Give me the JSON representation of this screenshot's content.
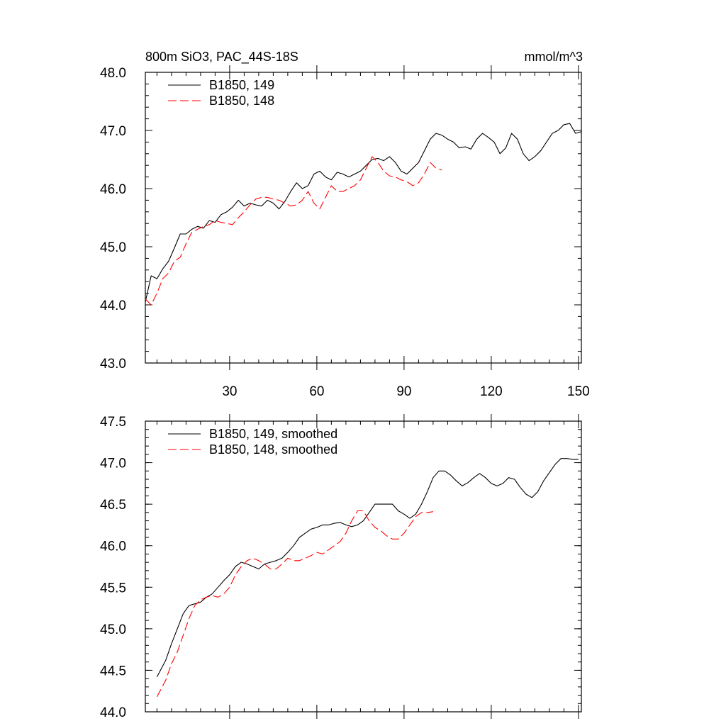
{
  "chart_data": [
    {
      "type": "line",
      "title": "800m SiO3, PAC_44S-18S",
      "units": "mmol/m^3",
      "xlim": [
        1,
        151
      ],
      "ylim": [
        43.0,
        48.0
      ],
      "xticks": [
        30,
        60,
        90,
        120,
        150
      ],
      "yticks": [
        "43.0",
        "44.0",
        "45.0",
        "46.0",
        "47.0",
        "48.0"
      ],
      "legend_position": "top-left",
      "series": [
        {
          "name": "B1850, 149",
          "color": "#000000",
          "dash": "solid",
          "x": [
            1,
            3,
            5,
            7,
            9,
            11,
            13,
            15,
            17,
            19,
            21,
            23,
            25,
            27,
            29,
            31,
            33,
            35,
            37,
            39,
            41,
            43,
            45,
            47,
            49,
            51,
            53,
            55,
            57,
            59,
            61,
            63,
            65,
            67,
            69,
            71,
            73,
            75,
            77,
            79,
            81,
            83,
            85,
            87,
            89,
            91,
            93,
            95,
            97,
            99,
            101,
            103,
            105,
            107,
            109,
            111,
            113,
            115,
            117,
            119,
            121,
            123,
            125,
            127,
            129,
            131,
            133,
            135,
            137,
            139,
            141,
            143,
            145,
            147,
            149,
            151
          ],
          "y": [
            44.05,
            44.5,
            44.45,
            44.62,
            44.75,
            44.98,
            45.22,
            45.22,
            45.3,
            45.35,
            45.32,
            45.45,
            45.42,
            45.55,
            45.6,
            45.68,
            45.8,
            45.7,
            45.75,
            45.72,
            45.7,
            45.8,
            45.75,
            45.65,
            45.78,
            45.95,
            46.1,
            46.0,
            46.05,
            46.25,
            46.3,
            46.2,
            46.15,
            46.28,
            46.25,
            46.2,
            46.25,
            46.3,
            46.4,
            46.5,
            46.52,
            46.48,
            46.55,
            46.45,
            46.3,
            46.25,
            46.35,
            46.45,
            46.65,
            46.85,
            46.95,
            46.92,
            46.85,
            46.8,
            46.7,
            46.72,
            46.68,
            46.85,
            46.95,
            46.88,
            46.8,
            46.6,
            46.7,
            46.95,
            46.85,
            46.6,
            46.48,
            46.55,
            46.65,
            46.8,
            46.95,
            47.0,
            47.1,
            47.12,
            46.95,
            46.98
          ]
        },
        {
          "name": "B1850, 148",
          "color": "#ff0000",
          "dash": "dashed",
          "x": [
            1,
            3,
            5,
            7,
            9,
            11,
            13,
            15,
            17,
            19,
            21,
            23,
            25,
            27,
            29,
            31,
            33,
            35,
            37,
            39,
            41,
            43,
            45,
            47,
            49,
            51,
            53,
            55,
            57,
            59,
            61,
            63,
            65,
            67,
            69,
            71,
            73,
            75,
            77,
            79,
            81,
            83,
            85,
            87,
            89,
            91,
            93,
            95,
            97,
            99,
            101,
            103
          ],
          "y": [
            44.1,
            44.0,
            44.2,
            44.45,
            44.55,
            44.75,
            44.82,
            45.05,
            45.25,
            45.3,
            45.35,
            45.38,
            45.45,
            45.42,
            45.4,
            45.38,
            45.5,
            45.6,
            45.72,
            45.82,
            45.85,
            45.85,
            45.82,
            45.8,
            45.75,
            45.7,
            45.72,
            45.8,
            45.95,
            45.75,
            45.65,
            45.85,
            46.05,
            45.95,
            45.95,
            46.0,
            46.05,
            46.15,
            46.35,
            46.55,
            46.45,
            46.3,
            46.22,
            46.2,
            46.15,
            46.12,
            46.05,
            46.1,
            46.25,
            46.45,
            46.35,
            46.32
          ]
        }
      ]
    },
    {
      "type": "line",
      "xlim": [
        1,
        151
      ],
      "ylim": [
        44.0,
        47.5
      ],
      "yticks": [
        "44.0",
        "44.5",
        "45.0",
        "45.5",
        "46.0",
        "46.5",
        "47.0",
        "47.5"
      ],
      "legend_position": "top-left",
      "series": [
        {
          "name": "B1850, 149, smoothed",
          "color": "#000000",
          "dash": "solid",
          "x": [
            5,
            8,
            10,
            12,
            14,
            16,
            18,
            20,
            22,
            24,
            26,
            28,
            30,
            32,
            34,
            36,
            38,
            40,
            42,
            44,
            46,
            48,
            50,
            52,
            54,
            56,
            58,
            60,
            62,
            64,
            66,
            68,
            70,
            72,
            74,
            76,
            78,
            80,
            82,
            84,
            86,
            88,
            90,
            92,
            94,
            96,
            98,
            100,
            102,
            104,
            106,
            108,
            110,
            112,
            114,
            116,
            118,
            120,
            122,
            124,
            126,
            128,
            130,
            132,
            134,
            136,
            138,
            140,
            142,
            144,
            146,
            148,
            150
          ],
          "y": [
            44.42,
            44.62,
            44.82,
            45.0,
            45.18,
            45.28,
            45.3,
            45.32,
            45.38,
            45.42,
            45.5,
            45.58,
            45.65,
            45.75,
            45.8,
            45.78,
            45.75,
            45.72,
            45.78,
            45.8,
            45.82,
            45.85,
            45.92,
            46.0,
            46.1,
            46.15,
            46.2,
            46.22,
            46.25,
            46.25,
            46.27,
            46.28,
            46.25,
            46.23,
            46.25,
            46.3,
            46.4,
            46.5,
            46.5,
            46.5,
            46.5,
            46.42,
            46.38,
            46.33,
            46.38,
            46.5,
            46.65,
            46.82,
            46.9,
            46.9,
            46.85,
            46.78,
            46.72,
            46.76,
            46.82,
            46.87,
            46.82,
            46.75,
            46.72,
            46.75,
            46.82,
            46.8,
            46.7,
            46.62,
            46.58,
            46.65,
            46.78,
            46.88,
            46.98,
            47.05,
            47.05,
            47.04,
            47.04
          ]
        },
        {
          "name": "B1850, 148, smoothed",
          "color": "#ff0000",
          "dash": "dashed",
          "x": [
            5,
            8,
            10,
            12,
            14,
            16,
            18,
            20,
            22,
            24,
            26,
            28,
            30,
            32,
            34,
            36,
            38,
            40,
            42,
            44,
            46,
            48,
            50,
            52,
            54,
            56,
            58,
            60,
            62,
            64,
            66,
            68,
            70,
            72,
            74,
            76,
            78,
            80,
            82,
            84,
            86,
            88,
            90,
            92,
            94,
            96,
            98,
            100
          ],
          "y": [
            44.18,
            44.38,
            44.58,
            44.72,
            44.92,
            45.12,
            45.28,
            45.35,
            45.38,
            45.4,
            45.38,
            45.42,
            45.5,
            45.65,
            45.75,
            45.82,
            45.85,
            45.82,
            45.78,
            45.72,
            45.72,
            45.78,
            45.85,
            45.82,
            45.82,
            45.85,
            45.88,
            45.92,
            45.9,
            45.95,
            46.0,
            46.05,
            46.15,
            46.3,
            46.42,
            46.42,
            46.3,
            46.22,
            46.18,
            46.12,
            46.08,
            46.08,
            46.15,
            46.25,
            46.35,
            46.4,
            46.4,
            46.41
          ]
        }
      ]
    }
  ]
}
